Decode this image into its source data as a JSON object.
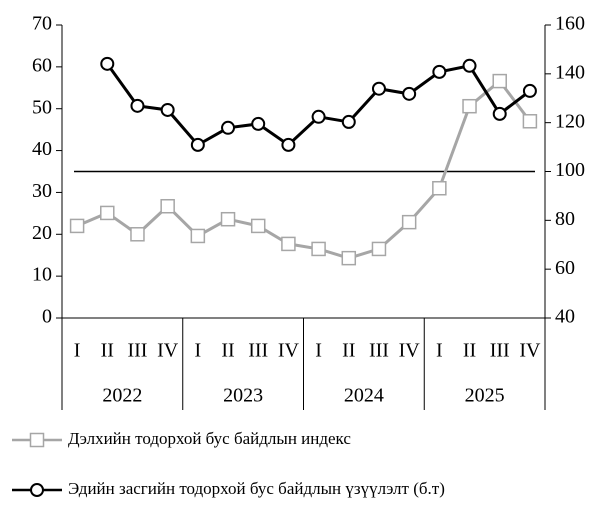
{
  "chart_data": {
    "type": "line",
    "categories": [
      "I",
      "II",
      "III",
      "IV",
      "I",
      "II",
      "III",
      "IV",
      "I",
      "II",
      "III",
      "IV",
      "I",
      "II",
      "III",
      "IV"
    ],
    "groups": [
      "2022",
      "2023",
      "2024",
      "2025"
    ],
    "series": [
      {
        "name": "Дэлхийн тодорхой бус байдлын индекс",
        "color": "#a6a6a6",
        "marker": "square",
        "values": [
          22.0,
          25.1,
          20.0,
          26.7,
          19.6,
          23.6,
          22.0,
          17.7,
          16.5,
          14.3,
          16.5,
          22.9,
          31.0,
          50.6,
          56.6,
          47.0
        ]
      },
      {
        "name": "Эдийн засгийн тодорхой бус байдлын үзүүлэлт (б.т)",
        "color": "#000000",
        "marker": "circle",
        "axis": "y2",
        "values": [
          null,
          144.1,
          126.9,
          125.2,
          110.9,
          117.9,
          119.5,
          110.9,
          122.4,
          120.3,
          133.9,
          131.8,
          140.8,
          143.3,
          123.6,
          133.0
        ]
      }
    ],
    "ylim": [
      0,
      70
    ],
    "yticks": [
      0,
      10,
      20,
      30,
      40,
      50,
      60,
      70
    ],
    "y2lim": [
      40,
      160
    ],
    "y2ticks": [
      40,
      60,
      80,
      100,
      120,
      140,
      160
    ],
    "reference_line": {
      "axis": "y2",
      "value": 100
    },
    "grid": false
  }
}
